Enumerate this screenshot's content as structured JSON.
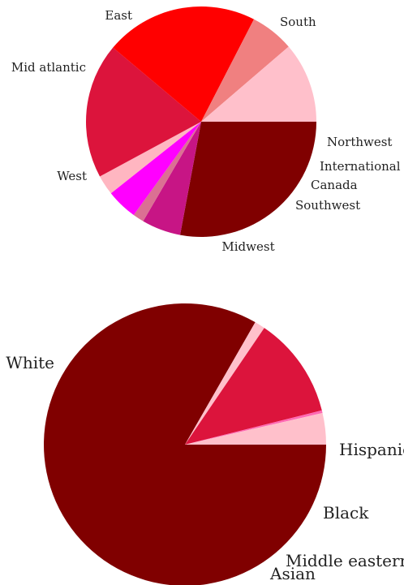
{
  "chart_data": [
    {
      "type": "pie",
      "slices": [
        {
          "label": "South",
          "value": 25.0,
          "color": "#800000"
        },
        {
          "label": "Northwest",
          "value": 4.9,
          "color": "#c71585"
        },
        {
          "label": "International",
          "value": 1.4,
          "color": "#db7093"
        },
        {
          "label": "Canada",
          "value": 3.9,
          "color": "#ff00ff"
        },
        {
          "label": "Southwest",
          "value": 2.5,
          "color": "#ffb6c1"
        },
        {
          "label": "Midwest",
          "value": 17.0,
          "color": "#dc143c"
        },
        {
          "label": "West",
          "value": 19.2,
          "color": "#ff0000"
        },
        {
          "label": "Mid atlantic",
          "value": 5.5,
          "color": "#f08080"
        },
        {
          "label": "East",
          "value": 10.1,
          "color": "#ffc0cb"
        }
      ]
    },
    {
      "type": "pie",
      "slices": [
        {
          "label": "White",
          "value": 83.3,
          "color": "#800000"
        },
        {
          "label": "Hispanic",
          "value": 1.2,
          "color": "#ffc0cb"
        },
        {
          "label": "Black",
          "value": 11.6,
          "color": "#dc143c"
        },
        {
          "label": "Middle eastern",
          "value": 0.3,
          "color": "#ff69b4"
        },
        {
          "label": "Asian",
          "value": 3.6,
          "color": "#ffc0cb"
        }
      ]
    }
  ]
}
